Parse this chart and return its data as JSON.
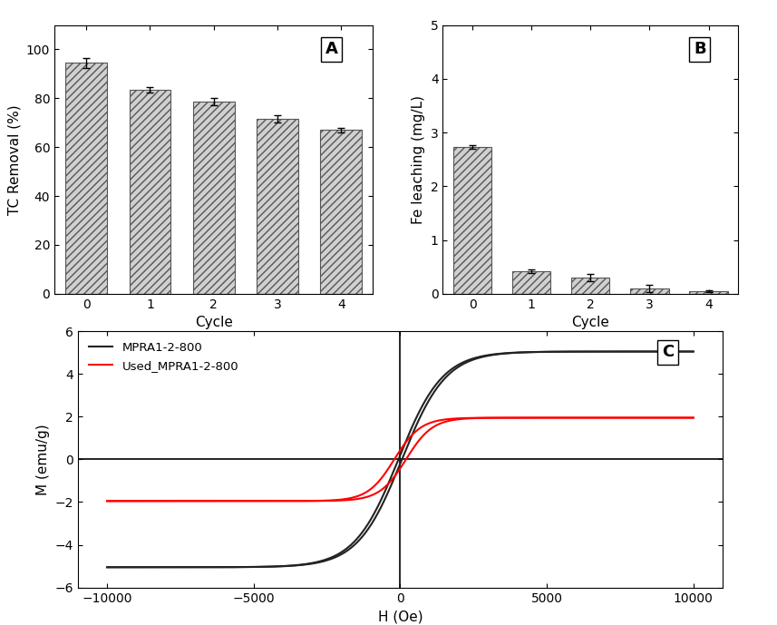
{
  "panel_A": {
    "cycles": [
      0,
      1,
      2,
      3,
      4
    ],
    "values": [
      94.5,
      83.5,
      78.5,
      71.5,
      67.0
    ],
    "errors": [
      2.0,
      1.0,
      1.5,
      1.5,
      0.8
    ],
    "ylabel": "TC Removal (%)",
    "xlabel": "Cycle",
    "ylim": [
      0,
      110
    ],
    "yticks": [
      0,
      20,
      40,
      60,
      80,
      100
    ],
    "label": "A"
  },
  "panel_B": {
    "cycles": [
      0,
      1,
      2,
      3,
      4
    ],
    "values": [
      2.73,
      0.42,
      0.3,
      0.1,
      0.05
    ],
    "errors": [
      0.03,
      0.03,
      0.06,
      0.07,
      0.02
    ],
    "ylabel": "Fe leaching (mg/L)",
    "xlabel": "Cycle",
    "ylim": [
      0,
      5
    ],
    "yticks": [
      0,
      1,
      2,
      3,
      4,
      5
    ],
    "label": "B"
  },
  "panel_C": {
    "xlabel": "H (Oe)",
    "ylabel": "M (emu/g)",
    "ylim": [
      -6,
      6
    ],
    "xlim": [
      -11000,
      11000
    ],
    "yticks": [
      -6,
      -4,
      -2,
      0,
      2,
      4,
      6
    ],
    "xticks": [
      -10000,
      -5000,
      0,
      5000,
      10000
    ],
    "label": "C",
    "legend_fresh": "MPRA1-2-800",
    "legend_used": "Used_MPRA1-2-800",
    "fresh_sat": 5.05,
    "used_sat": 1.95,
    "fresh_color": "#222222",
    "used_color": "#ff0000"
  },
  "hatch_pattern": "////",
  "bar_facecolor": "#d0d0d0",
  "bar_edgecolor": "#555555"
}
